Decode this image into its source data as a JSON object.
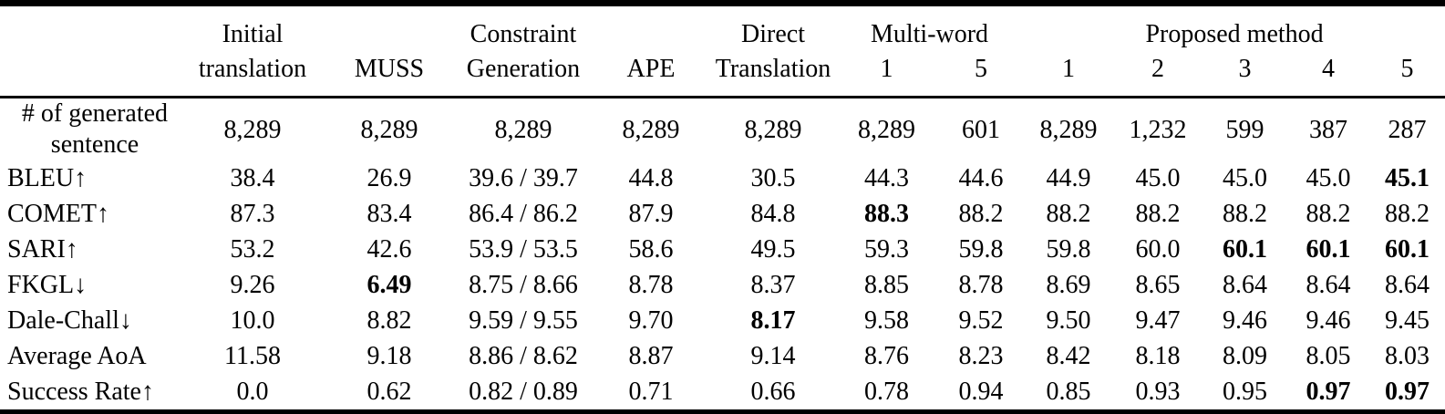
{
  "colors": {
    "background": "#ffffff",
    "text": "#000000",
    "rule": "#000000"
  },
  "table": {
    "header": {
      "groups": [
        {
          "line1": "Initial",
          "line2": [
            "translation"
          ]
        },
        {
          "line1": "",
          "line2": [
            "MUSS"
          ]
        },
        {
          "line1": "Constraint",
          "line2": [
            "Generation"
          ]
        },
        {
          "line1": "",
          "line2": [
            "APE"
          ]
        },
        {
          "line1": "Direct",
          "line2": [
            "Translation"
          ]
        },
        {
          "line1": "Multi-word",
          "line2": [
            "1",
            "5"
          ]
        },
        {
          "line1": "Proposed method",
          "line2": [
            "1",
            "2",
            "3",
            "4",
            "5"
          ]
        }
      ]
    },
    "rows": [
      {
        "label": "# of generated sentence",
        "values": [
          "8,289",
          "8,289",
          "8,289",
          "8,289",
          "8,289",
          "8,289",
          "601",
          "8,289",
          "1,232",
          "599",
          "387",
          "287"
        ],
        "bold": []
      },
      {
        "label": "BLEU↑",
        "values": [
          "38.4",
          "26.9",
          "39.6 / 39.7",
          "44.8",
          "30.5",
          "44.3",
          "44.6",
          "44.9",
          "45.0",
          "45.0",
          "45.0",
          "45.1"
        ],
        "bold": [
          11
        ]
      },
      {
        "label": "COMET↑",
        "values": [
          "87.3",
          "83.4",
          "86.4 / 86.2",
          "87.9",
          "84.8",
          "88.3",
          "88.2",
          "88.2",
          "88.2",
          "88.2",
          "88.2",
          "88.2"
        ],
        "bold": [
          5
        ]
      },
      {
        "label": "SARI↑",
        "values": [
          "53.2",
          "42.6",
          "53.9 / 53.5",
          "58.6",
          "49.5",
          "59.3",
          "59.8",
          "59.8",
          "60.0",
          "60.1",
          "60.1",
          "60.1"
        ],
        "bold": [
          9,
          10,
          11
        ]
      },
      {
        "label": "FKGL↓",
        "values": [
          "9.26",
          "6.49",
          "8.75 / 8.66",
          "8.78",
          "8.37",
          "8.85",
          "8.78",
          "8.69",
          "8.65",
          "8.64",
          "8.64",
          "8.64"
        ],
        "bold": [
          1
        ]
      },
      {
        "label": "Dale-Chall↓",
        "values": [
          "10.0",
          "8.82",
          "9.59 / 9.55",
          "9.70",
          "8.17",
          "9.58",
          "9.52",
          "9.50",
          "9.47",
          "9.46",
          "9.46",
          "9.45"
        ],
        "bold": [
          4
        ]
      },
      {
        "label": "Average AoA",
        "values": [
          "11.58",
          "9.18",
          "8.86 / 8.62",
          "8.87",
          "9.14",
          "8.76",
          "8.23",
          "8.42",
          "8.18",
          "8.09",
          "8.05",
          "8.03"
        ],
        "bold": []
      },
      {
        "label": "Success Rate↑",
        "values": [
          "0.0",
          "0.62",
          "0.82 / 0.89",
          "0.71",
          "0.66",
          "0.78",
          "0.94",
          "0.85",
          "0.93",
          "0.95",
          "0.97",
          "0.97"
        ],
        "bold": [
          10,
          11
        ]
      }
    ]
  }
}
